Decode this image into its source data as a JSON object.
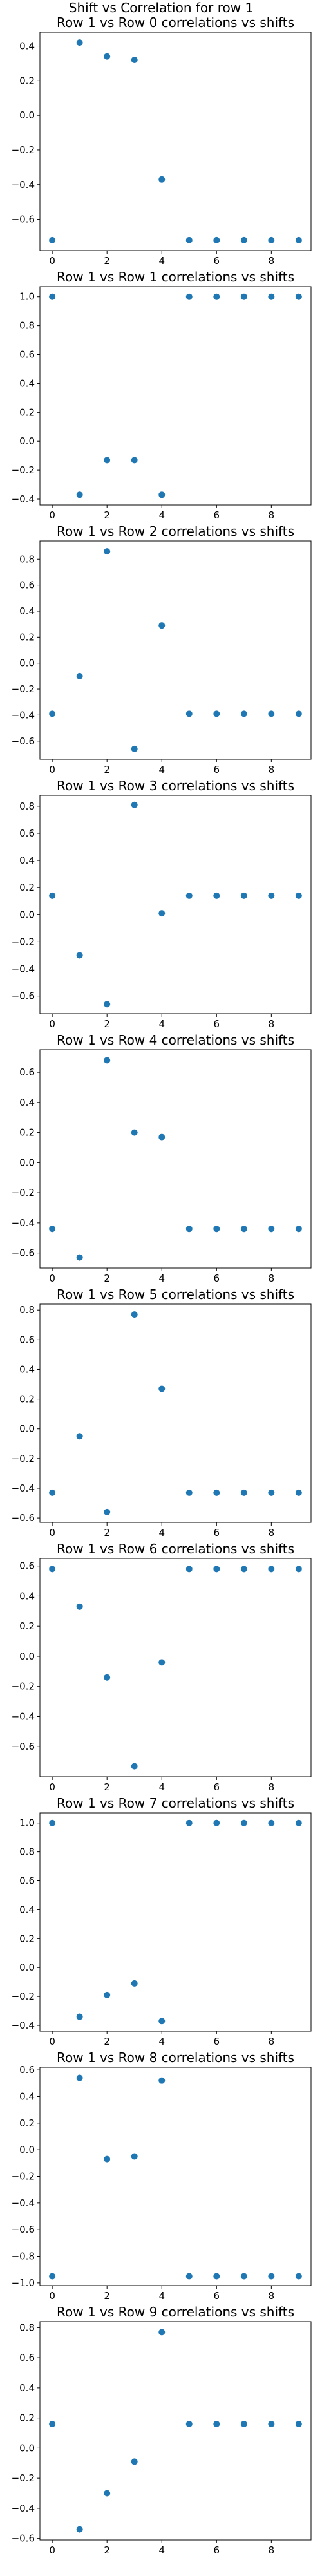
{
  "suptitle": "Shift vs Correlation for row 1",
  "colors": {
    "marker": "#1f77b4"
  },
  "chart_data": [
    {
      "type": "scatter",
      "title": "Row 1 vs Row 0 correlations vs shifts",
      "x": [
        0,
        1,
        2,
        3,
        4,
        5,
        6,
        7,
        8,
        9
      ],
      "y": [
        -0.72,
        0.42,
        0.34,
        0.32,
        -0.37,
        -0.72,
        -0.72,
        -0.72,
        -0.72,
        -0.72
      ],
      "xticks": [
        0,
        2,
        4,
        6,
        8
      ],
      "yticks": [
        -0.6,
        -0.4,
        -0.2,
        0.0,
        0.2,
        0.4
      ],
      "xlim": [
        -0.45,
        9.45
      ],
      "ylim": [
        -0.78,
        0.48
      ],
      "grid": false
    },
    {
      "type": "scatter",
      "title": "Row 1 vs Row 1 correlations vs shifts",
      "x": [
        0,
        1,
        2,
        3,
        4,
        5,
        6,
        7,
        8,
        9
      ],
      "y": [
        1.0,
        -0.37,
        -0.13,
        -0.13,
        -0.37,
        1.0,
        1.0,
        1.0,
        1.0,
        1.0
      ],
      "xticks": [
        0,
        2,
        4,
        6,
        8
      ],
      "yticks": [
        -0.4,
        -0.2,
        0.0,
        0.2,
        0.4,
        0.6,
        0.8,
        1.0
      ],
      "xlim": [
        -0.45,
        9.45
      ],
      "ylim": [
        -0.44,
        1.07
      ],
      "grid": false
    },
    {
      "type": "scatter",
      "title": "Row 1 vs Row 2 correlations vs shifts",
      "x": [
        0,
        1,
        2,
        3,
        4,
        5,
        6,
        7,
        8,
        9
      ],
      "y": [
        -0.39,
        -0.1,
        0.86,
        -0.66,
        0.29,
        -0.39,
        -0.39,
        -0.39,
        -0.39,
        -0.39
      ],
      "xticks": [
        0,
        2,
        4,
        6,
        8
      ],
      "yticks": [
        -0.6,
        -0.4,
        -0.2,
        0.0,
        0.2,
        0.4,
        0.6,
        0.8
      ],
      "xlim": [
        -0.45,
        9.45
      ],
      "ylim": [
        -0.74,
        0.94
      ],
      "grid": false
    },
    {
      "type": "scatter",
      "title": "Row 1 vs Row 3 correlations vs shifts",
      "x": [
        0,
        1,
        2,
        3,
        4,
        5,
        6,
        7,
        8,
        9
      ],
      "y": [
        0.14,
        -0.3,
        -0.66,
        0.81,
        0.01,
        0.14,
        0.14,
        0.14,
        0.14,
        0.14
      ],
      "xticks": [
        0,
        2,
        4,
        6,
        8
      ],
      "yticks": [
        -0.6,
        -0.4,
        -0.2,
        0.0,
        0.2,
        0.4,
        0.6,
        0.8
      ],
      "xlim": [
        -0.45,
        9.45
      ],
      "ylim": [
        -0.73,
        0.88
      ],
      "grid": false
    },
    {
      "type": "scatter",
      "title": "Row 1 vs Row 4 correlations vs shifts",
      "x": [
        0,
        1,
        2,
        3,
        4,
        5,
        6,
        7,
        8,
        9
      ],
      "y": [
        -0.44,
        -0.63,
        0.68,
        0.2,
        0.17,
        -0.44,
        -0.44,
        -0.44,
        -0.44,
        -0.44
      ],
      "xticks": [
        0,
        2,
        4,
        6,
        8
      ],
      "yticks": [
        -0.6,
        -0.4,
        -0.2,
        0.0,
        0.2,
        0.4,
        0.6
      ],
      "xlim": [
        -0.45,
        9.45
      ],
      "ylim": [
        -0.7,
        0.75
      ],
      "grid": false
    },
    {
      "type": "scatter",
      "title": "Row 1 vs Row 5 correlations vs shifts",
      "x": [
        0,
        1,
        2,
        3,
        4,
        5,
        6,
        7,
        8,
        9
      ],
      "y": [
        -0.43,
        -0.05,
        -0.56,
        0.77,
        0.27,
        -0.43,
        -0.43,
        -0.43,
        -0.43,
        -0.43
      ],
      "xticks": [
        0,
        2,
        4,
        6,
        8
      ],
      "yticks": [
        -0.6,
        -0.4,
        -0.2,
        0.0,
        0.2,
        0.4,
        0.6,
        0.8
      ],
      "xlim": [
        -0.45,
        9.45
      ],
      "ylim": [
        -0.63,
        0.84
      ],
      "grid": false
    },
    {
      "type": "scatter",
      "title": "Row 1 vs Row 6 correlations vs shifts",
      "x": [
        0,
        1,
        2,
        3,
        4,
        5,
        6,
        7,
        8,
        9
      ],
      "y": [
        0.58,
        0.33,
        -0.14,
        -0.73,
        -0.04,
        0.58,
        0.58,
        0.58,
        0.58,
        0.58
      ],
      "xticks": [
        0,
        2,
        4,
        6,
        8
      ],
      "yticks": [
        -0.6,
        -0.4,
        -0.2,
        0.0,
        0.2,
        0.4,
        0.6
      ],
      "xlim": [
        -0.45,
        9.45
      ],
      "ylim": [
        -0.8,
        0.65
      ],
      "grid": false
    },
    {
      "type": "scatter",
      "title": "Row 1 vs Row 7 correlations vs shifts",
      "x": [
        0,
        1,
        2,
        3,
        4,
        5,
        6,
        7,
        8,
        9
      ],
      "y": [
        1.0,
        -0.34,
        -0.19,
        -0.11,
        -0.37,
        1.0,
        1.0,
        1.0,
        1.0,
        1.0
      ],
      "xticks": [
        0,
        2,
        4,
        6,
        8
      ],
      "yticks": [
        -0.4,
        -0.2,
        0.0,
        0.2,
        0.4,
        0.6,
        0.8,
        1.0
      ],
      "xlim": [
        -0.45,
        9.45
      ],
      "ylim": [
        -0.44,
        1.07
      ],
      "grid": false
    },
    {
      "type": "scatter",
      "title": "Row 1 vs Row 8 correlations vs shifts",
      "x": [
        0,
        1,
        2,
        3,
        4,
        5,
        6,
        7,
        8,
        9
      ],
      "y": [
        -0.95,
        0.54,
        -0.07,
        -0.05,
        0.52,
        -0.95,
        -0.95,
        -0.95,
        -0.95,
        -0.95
      ],
      "xticks": [
        0,
        2,
        4,
        6,
        8
      ],
      "yticks": [
        -1.0,
        -0.8,
        -0.6,
        -0.4,
        -0.2,
        0.0,
        0.2,
        0.4,
        0.6
      ],
      "xlim": [
        -0.45,
        9.45
      ],
      "ylim": [
        -1.02,
        0.62
      ],
      "grid": false
    },
    {
      "type": "scatter",
      "title": "Row 1 vs Row 9 correlations vs shifts",
      "x": [
        0,
        1,
        2,
        3,
        4,
        5,
        6,
        7,
        8,
        9
      ],
      "y": [
        0.16,
        -0.54,
        -0.3,
        -0.09,
        0.77,
        0.16,
        0.16,
        0.16,
        0.16,
        0.16
      ],
      "xticks": [
        0,
        2,
        4,
        6,
        8
      ],
      "yticks": [
        -0.6,
        -0.4,
        -0.2,
        0.0,
        0.2,
        0.4,
        0.6,
        0.8
      ],
      "xlim": [
        -0.45,
        9.45
      ],
      "ylim": [
        -0.61,
        0.84
      ],
      "grid": false
    }
  ]
}
